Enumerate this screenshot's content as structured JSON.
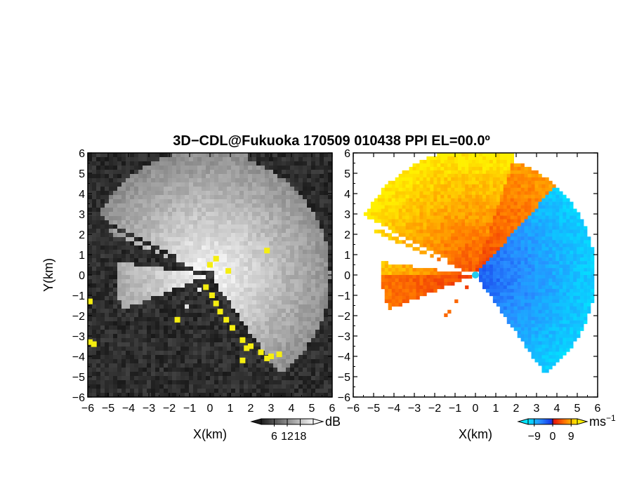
{
  "title": "3D−CDL@Fukuoka 170509 010438 PPI EL=00.0º",
  "colors": {
    "clutter_flag": "#f5ee10",
    "radar_center": "#444444",
    "velocity_neg": "#1a55ff",
    "velocity_pos": "#ff3a10",
    "velocity_high_pos": "#ffd000",
    "velocity_high_neg": "#22ddff"
  },
  "chart_data": [
    {
      "type": "heatmap",
      "field": "SNR",
      "xlabel": "X(km)",
      "ylabel": "Y(km)",
      "xlim": [
        -6,
        6
      ],
      "ylim": [
        -6,
        6
      ],
      "xticks": [
        -6,
        -5,
        -4,
        -3,
        -2,
        -1,
        0,
        1,
        2,
        3,
        4,
        5,
        6
      ],
      "yticks": [
        -6,
        -5,
        -4,
        -3,
        -2,
        -1,
        0,
        1,
        2,
        3,
        4,
        5,
        6
      ],
      "colorbar": {
        "unit": "dB",
        "ticks": [
          "6",
          "12",
          "18"
        ],
        "colormap": "grayscale",
        "range": [
          0,
          24
        ]
      },
      "overlay": "yellow cells flag clutter / hard targets",
      "grid": false
    },
    {
      "type": "heatmap",
      "field": "Doppler velocity",
      "xlabel": "X(km)",
      "ylabel": "",
      "xlim": [
        -6,
        6
      ],
      "ylim": [
        -6,
        6
      ],
      "xticks": [
        -6,
        -5,
        -4,
        -3,
        -2,
        -1,
        0,
        1,
        2,
        3,
        4,
        5,
        6
      ],
      "yticks": [
        -6,
        -5,
        -4,
        -3,
        -2,
        -1,
        0,
        1,
        2,
        3,
        4,
        5,
        6
      ],
      "colorbar": {
        "unit": "ms",
        "unit_exponent": "−1",
        "ticks": [
          "−9",
          "0",
          "9"
        ],
        "colormap": "cyan-blue-red-orange-yellow",
        "range": [
          -12,
          12
        ]
      },
      "grid": false
    }
  ],
  "ticks": {
    "x": [
      "−6",
      "−5",
      "−4",
      "−3",
      "−2",
      "−1",
      "0",
      "1",
      "2",
      "3",
      "4",
      "5",
      "6"
    ],
    "y": [
      "−6",
      "−5",
      "−4",
      "−3",
      "−2",
      "−1",
      "0",
      "1",
      "2",
      "3",
      "4",
      "5",
      "6"
    ]
  }
}
